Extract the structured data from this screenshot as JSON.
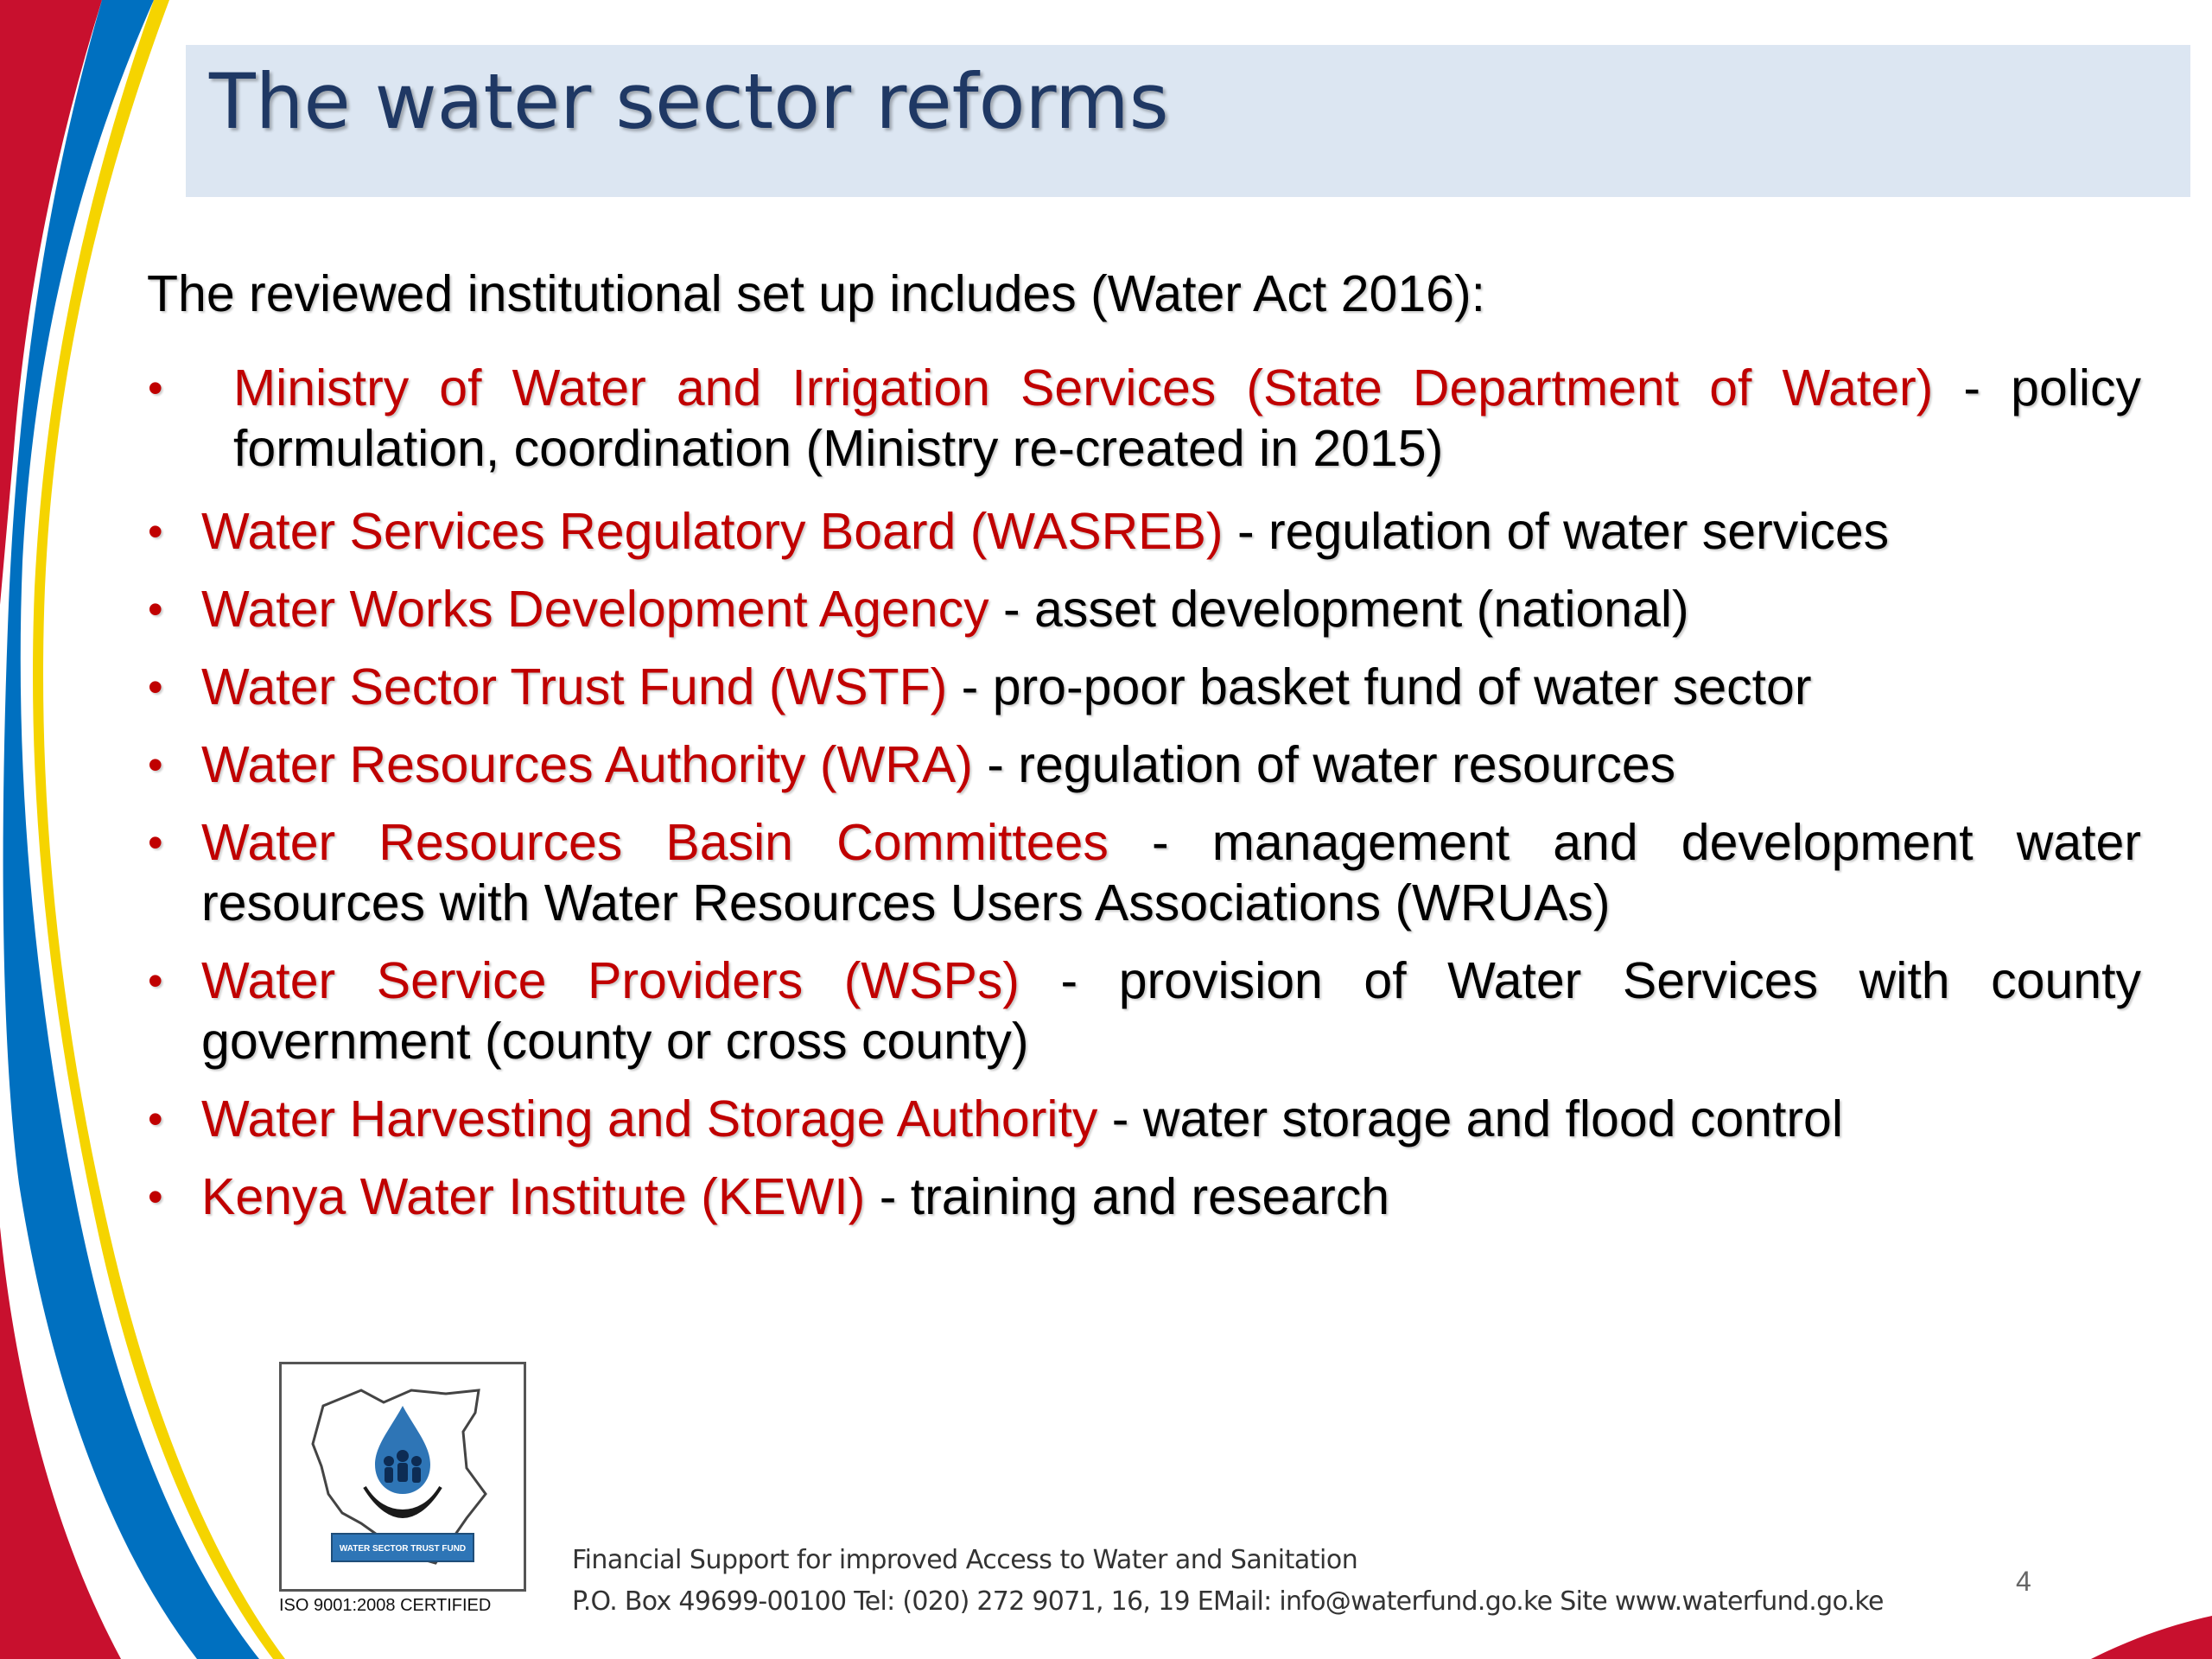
{
  "slide": {
    "title": "The water sector reforms",
    "intro": "The reviewed  institutional set up includes (Water Act 2016):",
    "bullet_symbol": "•",
    "items": [
      {
        "name": "Ministry of Water and Irrigation Services (State Department of Water)",
        "desc": " - policy formulation, coordination (Ministry re-created in 2015)"
      },
      {
        "name": "Water Services Regulatory Board (WASREB)",
        "desc": " - regulation of water services"
      },
      {
        "name": "Water Works Development Agency",
        "desc": " - asset development (national)"
      },
      {
        "name": "Water Sector Trust Fund (WSTF)",
        "desc": " - pro-poor basket fund of water sector"
      },
      {
        "name": "Water Resources  Authority (WRA)",
        "desc": " - regulation of water resources"
      },
      {
        "name": "Water Resources Basin Committees",
        "desc": " - management and development water resources with  Water  Resources  Users Associations (WRUAs)"
      },
      {
        "name": "Water Service Providers (WSPs)",
        "desc": " - provision of Water Services with county government (county or cross county)"
      },
      {
        "name": "Water Harvesting and Storage Authority",
        "desc": " - water storage and flood control"
      },
      {
        "name": "Kenya Water Institute (KEWI)",
        "desc": " - training and research"
      }
    ],
    "logo": {
      "banner_text": "WATER SECTOR TRUST FUND",
      "iso_text": "ISO 9001:2008 CERTIFIED"
    },
    "footer": {
      "line1": "Financial Support for improved Access to Water and Sanitation",
      "line2": "P.O. Box 49699-00100 Tel: (020) 272 9071, 16, 19 EMail: info@waterfund.go.ke Site www.waterfund.go.ke"
    },
    "page_number": "4"
  },
  "colors": {
    "title_band": "#dce6f2",
    "title_text": "#1f3864",
    "accent_red": "#c00000",
    "accent_blue": "#0070c0",
    "accent_yellow": "#f5d400"
  }
}
